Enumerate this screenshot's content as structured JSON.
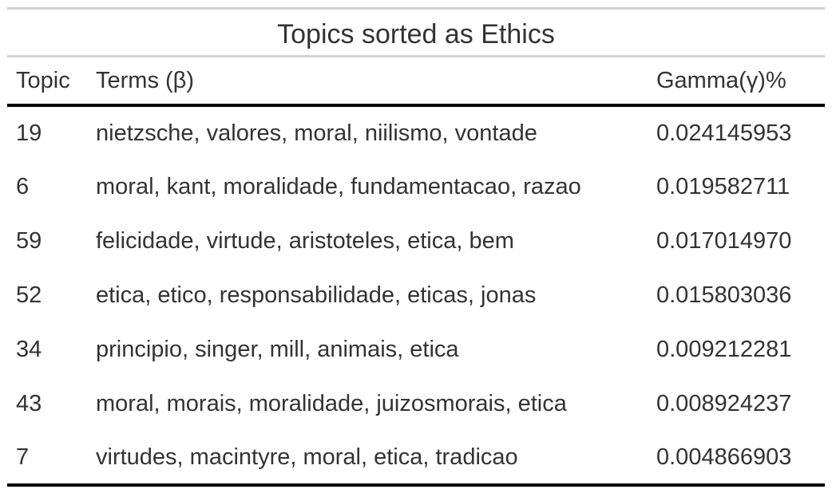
{
  "table": {
    "title": "Topics sorted as Ethics",
    "headers": {
      "topic": "Topic",
      "terms": "Terms (β)",
      "gamma": "Gamma(γ)%"
    },
    "rows": [
      {
        "topic": "19",
        "terms": "nietzsche, valores, moral, niilismo, vontade",
        "gamma": "0.024145953"
      },
      {
        "topic": "6",
        "terms": "moral, kant, moralidade, fundamentacao, razao",
        "gamma": "0.019582711"
      },
      {
        "topic": "59",
        "terms": "felicidade, virtude, aristoteles, etica, bem",
        "gamma": "0.017014970"
      },
      {
        "topic": "52",
        "terms": "etica, etico, responsabilidade, eticas, jonas",
        "gamma": "0.015803036"
      },
      {
        "topic": "34",
        "terms": "principio, singer, mill, animais, etica",
        "gamma": "0.009212281"
      },
      {
        "topic": "43",
        "terms": "moral, morais, moralidade, juizosmorais, etica",
        "gamma": "0.008924237"
      },
      {
        "topic": "7",
        "terms": "virtudes, macintyre, moral, etica, tradicao",
        "gamma": "0.004866903"
      }
    ]
  }
}
